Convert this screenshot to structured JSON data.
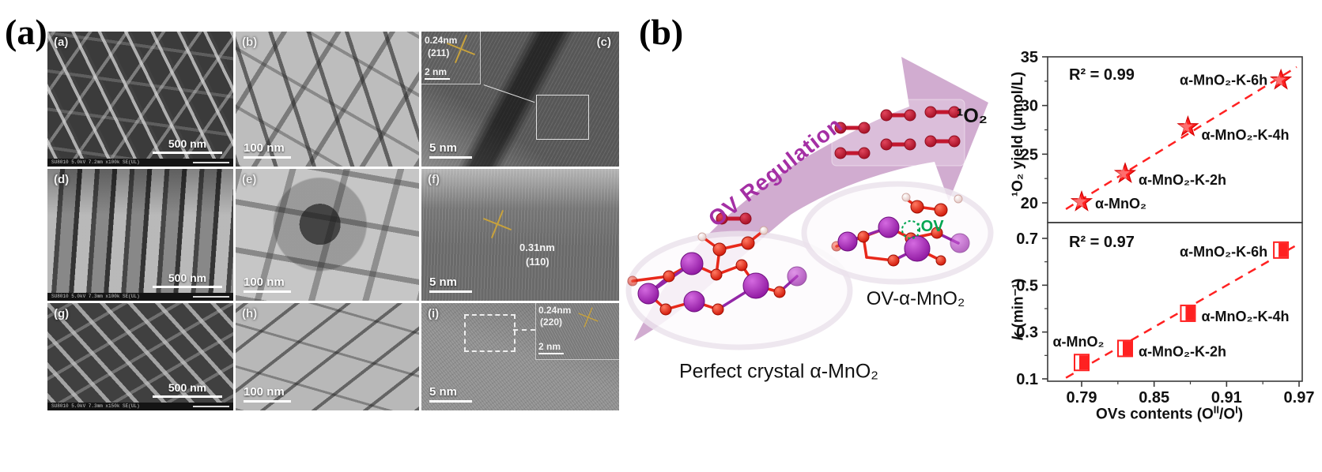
{
  "panels": {
    "a_label": "(a)",
    "b_label": "(b)"
  },
  "micrographs": {
    "a": {
      "label": "(a)",
      "scale_bar": "500 nm",
      "meta": "SU8010 5.0kV 7.2mm x100k SE(UL)"
    },
    "b": {
      "label": "(b)",
      "scale_bar": "100 nm"
    },
    "c": {
      "label": "(c)",
      "scale_bar": "5 nm",
      "inset": {
        "spacing": "0.24nm",
        "plane": "(211)",
        "scale_bar": "2 nm"
      }
    },
    "d": {
      "label": "(d)",
      "scale_bar": "500 nm",
      "meta": "SU8010 5.0kV 7.3mm x100k SE(UL)"
    },
    "e": {
      "label": "(e)",
      "scale_bar": "100 nm"
    },
    "f": {
      "label": "(f)",
      "scale_bar": "5 nm",
      "annotation": {
        "spacing": "0.31nm",
        "plane": "(110)"
      }
    },
    "g": {
      "label": "(g)",
      "scale_bar": "500 nm",
      "meta": "SU8010 5.0kV 7.3mm x150k SE(UL)"
    },
    "h": {
      "label": "(h)",
      "scale_bar": "100 nm"
    },
    "i": {
      "label": "(i)",
      "scale_bar": "5 nm",
      "inset": {
        "spacing": "0.24nm",
        "plane": "(220)",
        "scale_bar": "2 nm"
      }
    }
  },
  "schematic": {
    "arrow_label": "OV Regulation",
    "singlet_oxygen_label": "¹O₂",
    "ov_site_label": ":OV",
    "perfect_crystal_label": "Perfect crystal α-MnO₂",
    "ov_crystal_label": "OV-α-MnO₂"
  },
  "colors": {
    "arrow_fill": "#cfa8ce",
    "arrow_text": "#a42fa4",
    "chart_accent": "#ff2121",
    "oxygen_red": "#c2172f",
    "mn_purple": "#a21caf",
    "o_red": "#e8281a",
    "h_white": "#f5e3e1",
    "ov_green": "#00a651",
    "axis": "#3a3a3a",
    "lattice_gold": "#c8a23c"
  },
  "chart_data": [
    {
      "type": "scatter",
      "ylabel": "¹O₂ yield (μmol/L)",
      "r_squared_label": "R² = 0.99",
      "marker": "star",
      "ylim": [
        18,
        35
      ],
      "yticks": [
        20,
        25,
        30,
        35
      ],
      "yticks_minor": [
        22.5,
        27.5,
        32.5
      ],
      "xlim": [
        0.775,
        0.972
      ],
      "trendline": {
        "style": "dashed"
      },
      "points": [
        {
          "x": 0.79,
          "y": 20.1,
          "label": "α-MnO₂",
          "label_side": "right"
        },
        {
          "x": 0.826,
          "y": 23.0,
          "label": "α-MnO₂-K-2h",
          "label_side": "right"
        },
        {
          "x": 0.878,
          "y": 27.8,
          "label": "α-MnO₂-K-4h",
          "label_side": "right"
        },
        {
          "x": 0.955,
          "y": 32.6,
          "label": "α-MnO₂-K-6h",
          "label_side": "left"
        }
      ]
    },
    {
      "type": "scatter",
      "ylabel_italic": "k",
      "ylabel_rest": " (min⁻¹)",
      "r_squared_label": "R² = 0.97",
      "marker": "half-square",
      "ylim": [
        0.08,
        0.77
      ],
      "yticks": [
        0.1,
        0.3,
        0.5,
        0.7
      ],
      "yticks_minor": [
        0.2,
        0.4,
        0.6
      ],
      "xlim": [
        0.775,
        0.972
      ],
      "xticks": [
        0.79,
        0.85,
        0.91,
        0.97
      ],
      "xticks_minor": [
        0.82,
        0.88,
        0.94
      ],
      "xlabel_parts": {
        "pre": "OVs contents (O",
        "sup_a": "II",
        "mid": "/O",
        "sup_b": "I",
        "post": ")"
      },
      "trendline": {
        "style": "dashed"
      },
      "points": [
        {
          "x": 0.79,
          "y": 0.17,
          "label": "α-MnO₂",
          "label_side": "above"
        },
        {
          "x": 0.826,
          "y": 0.23,
          "label": "α-MnO₂-K-2h",
          "label_side": "right"
        },
        {
          "x": 0.878,
          "y": 0.38,
          "label": "α-MnO₂-K-4h",
          "label_side": "right"
        },
        {
          "x": 0.955,
          "y": 0.65,
          "label": "α-MnO₂-K-6h",
          "label_side": "left"
        }
      ]
    }
  ]
}
